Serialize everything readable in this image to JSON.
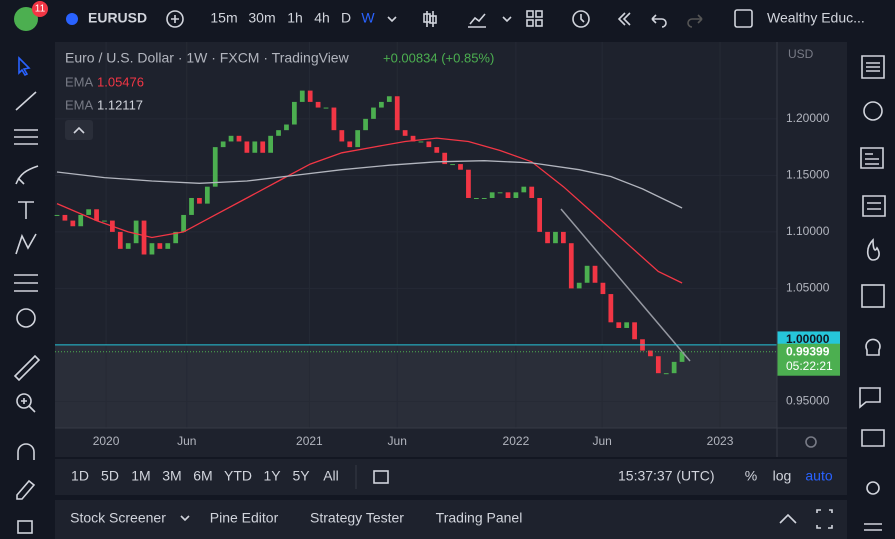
{
  "toolbar": {
    "badge": "11",
    "symbol": "EURUSD",
    "intervals": [
      "15m",
      "30m",
      "1h",
      "4h",
      "D",
      "W"
    ],
    "account": "Wealthy Educ..."
  },
  "chart_data": {
    "type": "candlestick",
    "title": "Euro / U.S. Dollar · 1W · FXCM · TradingView",
    "change": "+0.00834 (+0.85%)",
    "currency": "USD",
    "up_color": "#4caf50",
    "down_color": "#f23645",
    "closes": [
      1.115,
      1.11,
      1.105,
      1.115,
      1.12,
      1.11,
      1.11,
      1.1,
      1.085,
      1.09,
      1.11,
      1.08,
      1.09,
      1.085,
      1.09,
      1.1,
      1.115,
      1.13,
      1.125,
      1.14,
      1.175,
      1.18,
      1.185,
      1.18,
      1.17,
      1.18,
      1.17,
      1.185,
      1.19,
      1.195,
      1.215,
      1.225,
      1.215,
      1.21,
      1.21,
      1.19,
      1.18,
      1.175,
      1.19,
      1.2,
      1.21,
      1.215,
      1.22,
      1.19,
      1.185,
      1.18,
      1.18,
      1.175,
      1.17,
      1.16,
      1.16,
      1.155,
      1.13,
      1.13,
      1.13,
      1.135,
      1.135,
      1.13,
      1.135,
      1.14,
      1.13,
      1.1,
      1.09,
      1.1,
      1.09,
      1.05,
      1.055,
      1.07,
      1.055,
      1.045,
      1.02,
      1.015,
      1.02,
      1.005,
      0.995,
      0.99,
      0.975,
      0.975,
      0.985,
      0.99399
    ],
    "series": [
      {
        "name": "EMA",
        "value_label": "1.05476",
        "color": "#f23645",
        "x": [
          0,
          5,
          9,
          12,
          16,
          20,
          24,
          28,
          32,
          36,
          40,
          44,
          48,
          52,
          56,
          60,
          64,
          68,
          72,
          76,
          79
        ],
        "values": [
          1.125,
          1.11,
          1.1,
          1.095,
          1.1,
          1.115,
          1.13,
          1.145,
          1.16,
          1.17,
          1.175,
          1.18,
          1.183,
          1.18,
          1.172,
          1.162,
          1.14,
          1.115,
          1.09,
          1.065,
          1.05476
        ]
      },
      {
        "name": "EMA",
        "value_label": "1.12117",
        "color": "#b2b5be",
        "x": [
          0,
          6,
          12,
          18,
          24,
          30,
          36,
          42,
          48,
          54,
          60,
          66,
          70,
          74,
          79
        ],
        "values": [
          1.153,
          1.148,
          1.145,
          1.143,
          1.145,
          1.15,
          1.155,
          1.159,
          1.162,
          1.163,
          1.161,
          1.155,
          1.149,
          1.138,
          1.12117
        ]
      }
    ],
    "xlim": [
      0,
      91
    ],
    "xticks": [
      {
        "value": 6.2,
        "label": "2020"
      },
      {
        "value": 16.4,
        "label": "Jun"
      },
      {
        "value": 31.9,
        "label": "2021"
      },
      {
        "value": 43.0,
        "label": "Jun"
      },
      {
        "value": 58.0,
        "label": "2022"
      },
      {
        "value": 68.9,
        "label": "Jun"
      },
      {
        "value": 83.8,
        "label": "2023"
      }
    ],
    "ylim": [
      0.9265,
      1.268
    ],
    "yticks": [
      {
        "value": 0.95,
        "label": "0.95000"
      },
      {
        "value": 1.05,
        "label": "1.05000"
      },
      {
        "value": 1.1,
        "label": "1.10000"
      },
      {
        "value": 1.15,
        "label": "1.15000"
      },
      {
        "value": 1.2,
        "label": "1.20000"
      }
    ],
    "price_lines": [
      {
        "value": 1,
        "label": "1.00000",
        "color": "#26c6da"
      },
      {
        "value": 0.99399,
        "label": "0.99399",
        "countdown": "05:22:21",
        "color": "#4caf50"
      }
    ]
  },
  "bottom_bar": {
    "ranges": [
      "1D",
      "5D",
      "1M",
      "3M",
      "6M",
      "YTD",
      "1Y",
      "5Y",
      "All"
    ],
    "time": "15:37:37 (UTC)",
    "options": [
      "%",
      "log",
      "auto"
    ]
  },
  "panel_tabs": [
    "Stock Screener",
    "Pine Editor",
    "Strategy Tester",
    "Trading Panel"
  ]
}
